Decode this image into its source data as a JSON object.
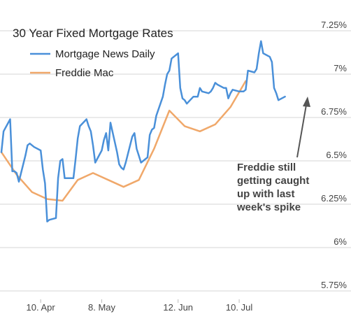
{
  "chart_data": {
    "type": "line",
    "title": "30 Year Fixed Mortgage Rates",
    "xlabel": "",
    "ylabel": "",
    "ylim": [
      5.75,
      7.25
    ],
    "yticks": [
      "5.75%",
      "6%",
      "6.25%",
      "6.5%",
      "6.75%",
      "7%",
      "7.25%"
    ],
    "yticks_values": [
      5.75,
      6.0,
      6.25,
      6.5,
      6.75,
      7.0,
      7.25
    ],
    "xticks": [
      "10. Apr",
      "8. May",
      "12. Jun",
      "10. Jul"
    ],
    "grid": true,
    "legend": "top-left",
    "annotation": [
      "Freddie still",
      "getting caught",
      "up with last",
      "week's spike"
    ],
    "series": [
      {
        "name": "Mortgage News Daily",
        "color": "#4a90d9",
        "points": [
          [
            "2023-03-23",
            6.55
          ],
          [
            "2023-03-24",
            6.67
          ],
          [
            "2023-03-27",
            6.74
          ],
          [
            "2023-03-28",
            6.44
          ],
          [
            "2023-03-29",
            6.44
          ],
          [
            "2023-03-30",
            6.43
          ],
          [
            "2023-03-31",
            6.38
          ],
          [
            "2023-04-03",
            6.53
          ],
          [
            "2023-04-04",
            6.59
          ],
          [
            "2023-04-05",
            6.6
          ],
          [
            "2023-04-06",
            6.59
          ],
          [
            "2023-04-07",
            6.58
          ],
          [
            "2023-04-10",
            6.56
          ],
          [
            "2023-04-11",
            6.45
          ],
          [
            "2023-04-12",
            6.37
          ],
          [
            "2023-04-13",
            6.15
          ],
          [
            "2023-04-14",
            6.16
          ],
          [
            "2023-04-17",
            6.17
          ],
          [
            "2023-04-18",
            6.4
          ],
          [
            "2023-04-19",
            6.5
          ],
          [
            "2023-04-20",
            6.51
          ],
          [
            "2023-04-21",
            6.4
          ],
          [
            "2023-04-24",
            6.4
          ],
          [
            "2023-04-25",
            6.4
          ],
          [
            "2023-04-26",
            6.51
          ],
          [
            "2023-04-27",
            6.63
          ],
          [
            "2023-04-28",
            6.7
          ],
          [
            "2023-05-01",
            6.74
          ],
          [
            "2023-05-02",
            6.7
          ],
          [
            "2023-05-03",
            6.67
          ],
          [
            "2023-05-04",
            6.59
          ],
          [
            "2023-05-05",
            6.49
          ],
          [
            "2023-05-08",
            6.56
          ],
          [
            "2023-05-09",
            6.62
          ],
          [
            "2023-05-10",
            6.66
          ],
          [
            "2023-05-11",
            6.56
          ],
          [
            "2023-05-12",
            6.72
          ],
          [
            "2023-05-15",
            6.55
          ],
          [
            "2023-05-16",
            6.48
          ],
          [
            "2023-05-17",
            6.46
          ],
          [
            "2023-05-18",
            6.45
          ],
          [
            "2023-05-19",
            6.49
          ],
          [
            "2023-05-22",
            6.64
          ],
          [
            "2023-05-23",
            6.66
          ],
          [
            "2023-05-24",
            6.57
          ],
          [
            "2023-05-25",
            6.53
          ],
          [
            "2023-05-26",
            6.49
          ],
          [
            "2023-05-29",
            6.52
          ],
          [
            "2023-05-30",
            6.65
          ],
          [
            "2023-05-31",
            6.68
          ],
          [
            "2023-06-01",
            6.69
          ],
          [
            "2023-06-02",
            6.76
          ],
          [
            "2023-06-05",
            6.87
          ],
          [
            "2023-06-06",
            6.94
          ],
          [
            "2023-06-07",
            7.0
          ],
          [
            "2023-06-08",
            7.02
          ],
          [
            "2023-06-09",
            7.09
          ],
          [
            "2023-06-12",
            7.12
          ],
          [
            "2023-06-13",
            6.92
          ],
          [
            "2023-06-14",
            6.86
          ],
          [
            "2023-06-15",
            6.85
          ],
          [
            "2023-06-16",
            6.83
          ],
          [
            "2023-06-19",
            6.87
          ],
          [
            "2023-06-20",
            6.87
          ],
          [
            "2023-06-21",
            6.87
          ],
          [
            "2023-06-22",
            6.92
          ],
          [
            "2023-06-23",
            6.9
          ],
          [
            "2023-06-26",
            6.89
          ],
          [
            "2023-06-27",
            6.9
          ],
          [
            "2023-06-28",
            6.92
          ],
          [
            "2023-06-29",
            6.95
          ],
          [
            "2023-06-30",
            6.94
          ],
          [
            "2023-07-03",
            6.92
          ],
          [
            "2023-07-04",
            6.92
          ],
          [
            "2023-07-05",
            6.86
          ],
          [
            "2023-07-06",
            6.89
          ],
          [
            "2023-07-07",
            6.91
          ],
          [
            "2023-07-10",
            6.9
          ],
          [
            "2023-07-11",
            6.9
          ],
          [
            "2023-07-12",
            6.9
          ],
          [
            "2023-07-13",
            6.91
          ],
          [
            "2023-07-14",
            7.02
          ],
          [
            "2023-07-17",
            7.01
          ],
          [
            "2023-07-18",
            7.03
          ],
          [
            "2023-07-19",
            7.12
          ],
          [
            "2023-07-20",
            7.19
          ],
          [
            "2023-07-21",
            7.12
          ],
          [
            "2023-07-24",
            7.1
          ],
          [
            "2023-07-25",
            7.07
          ],
          [
            "2023-07-26",
            6.92
          ],
          [
            "2023-07-27",
            6.89
          ],
          [
            "2023-07-28",
            6.85
          ],
          [
            "2023-07-31",
            6.87
          ]
        ]
      },
      {
        "name": "Freddie Mac",
        "color": "#f0a86a",
        "points": [
          [
            "2023-03-23",
            6.55
          ],
          [
            "2023-03-30",
            6.42
          ],
          [
            "2023-04-06",
            6.32
          ],
          [
            "2023-04-13",
            6.28
          ],
          [
            "2023-04-20",
            6.27
          ],
          [
            "2023-04-27",
            6.39
          ],
          [
            "2023-05-04",
            6.43
          ],
          [
            "2023-05-11",
            6.39
          ],
          [
            "2023-05-18",
            6.35
          ],
          [
            "2023-05-25",
            6.39
          ],
          [
            "2023-06-01",
            6.57
          ],
          [
            "2023-06-08",
            6.79
          ],
          [
            "2023-06-15",
            6.7
          ],
          [
            "2023-06-22",
            6.67
          ],
          [
            "2023-06-29",
            6.71
          ],
          [
            "2023-07-06",
            6.81
          ],
          [
            "2023-07-13",
            6.96
          ]
        ]
      }
    ]
  }
}
